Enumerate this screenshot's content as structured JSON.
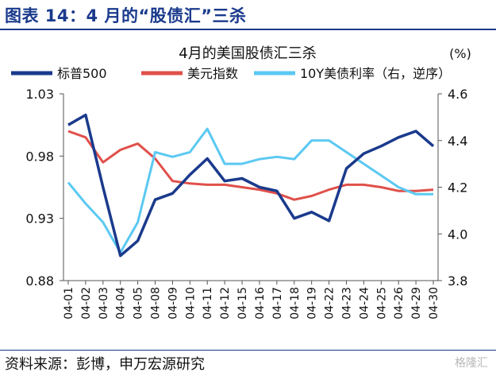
{
  "header": {
    "title": "图表 14：4 月的“股债汇”三杀"
  },
  "footer": {
    "source": "资料来源：彭博，申万宏源研究",
    "watermark": "格隆汇"
  },
  "chart_data": {
    "type": "line",
    "title": "4月的美国股债汇三杀",
    "right_unit": "(%)",
    "legend_position": "top",
    "grid": false,
    "x": [
      "04-01",
      "04-02",
      "04-03",
      "04-04",
      "04-05",
      "04-08",
      "04-09",
      "04-10",
      "04-11",
      "04-12",
      "04-15",
      "04-16",
      "04-17",
      "04-18",
      "04-19",
      "04-22",
      "04-23",
      "04-24",
      "04-25",
      "04-26",
      "04-29",
      "04-30"
    ],
    "left_axis": {
      "ylim": [
        0.88,
        1.03
      ],
      "ticks": [
        "0.88",
        "0.93",
        "0.98",
        "1.03"
      ]
    },
    "right_axis": {
      "ylim": [
        4.6,
        3.8
      ],
      "inverted": true,
      "ticks": [
        "4.6",
        "4.4",
        "4.2",
        "4.0",
        "3.8"
      ]
    },
    "series": [
      {
        "name": "标普500",
        "axis": "left",
        "color": "#1a3a8c",
        "values": [
          1.005,
          1.013,
          0.955,
          0.9,
          0.912,
          0.945,
          0.95,
          0.965,
          0.978,
          0.96,
          0.962,
          0.955,
          0.952,
          0.93,
          0.935,
          0.928,
          0.97,
          0.982,
          0.988,
          0.995,
          1.0,
          0.988
        ]
      },
      {
        "name": "美元指数",
        "axis": "left",
        "color": "#e0504a",
        "values": [
          1.0,
          0.995,
          0.975,
          0.985,
          0.99,
          0.978,
          0.96,
          0.958,
          0.957,
          0.957,
          0.955,
          0.953,
          0.95,
          0.945,
          0.948,
          0.953,
          0.957,
          0.957,
          0.955,
          0.952,
          0.952,
          0.953
        ]
      },
      {
        "name": "10Y美债利率（右，逆序）",
        "axis": "right",
        "color": "#5bc9f2",
        "values": [
          4.22,
          4.13,
          4.05,
          3.92,
          4.05,
          4.35,
          4.33,
          4.35,
          4.45,
          4.3,
          4.3,
          4.32,
          4.33,
          4.32,
          4.4,
          4.4,
          4.35,
          4.3,
          4.25,
          4.2,
          4.17,
          4.17
        ]
      }
    ]
  }
}
